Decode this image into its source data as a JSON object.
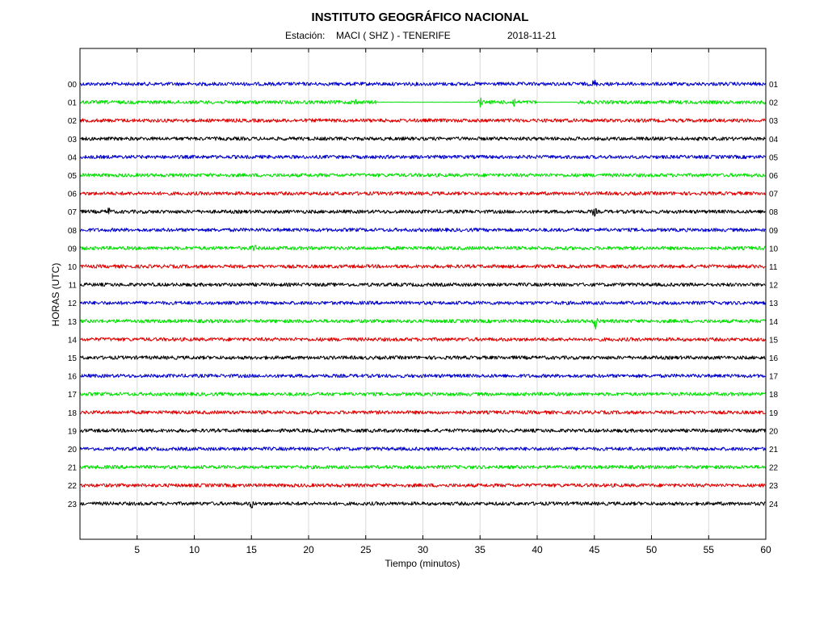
{
  "header": {
    "title": "INSTITUTO GEOGRÁFICO NACIONAL",
    "station_label": "Estación:",
    "station": "MACI ( SHZ ) - TENERIFE",
    "date": "2018-11-21"
  },
  "chart_data": {
    "type": "line",
    "xlabel": "Tiempo (minutos)",
    "ylabel": "HORAS (UTC)",
    "xlim": [
      0,
      60
    ],
    "x_ticks": [
      5,
      10,
      15,
      20,
      25,
      30,
      35,
      40,
      45,
      50,
      55,
      60
    ],
    "grid": "vertical",
    "hour_labels_left": [
      "00",
      "01",
      "02",
      "03",
      "04",
      "05",
      "06",
      "07",
      "08",
      "09",
      "10",
      "11",
      "12",
      "13",
      "14",
      "15",
      "16",
      "17",
      "18",
      "19",
      "20",
      "21",
      "22",
      "23"
    ],
    "hour_labels_right": [
      "01",
      "02",
      "03",
      "04",
      "05",
      "06",
      "07",
      "08",
      "09",
      "10",
      "11",
      "12",
      "13",
      "14",
      "15",
      "16",
      "17",
      "18",
      "19",
      "20",
      "21",
      "22",
      "23",
      "24"
    ],
    "trace_colors": [
      "#0000cc",
      "#00e000",
      "#e00000",
      "#000000"
    ],
    "series": [
      {
        "hour": "00",
        "color": "#0000cc",
        "amplitude": "medium",
        "events": [
          {
            "minute": 45,
            "strength": "small"
          }
        ]
      },
      {
        "hour": "01",
        "color": "#00e000",
        "amplitude": "medium",
        "events": [
          {
            "minute": 24,
            "strength": "small"
          },
          {
            "minute": 35,
            "strength": "small"
          },
          {
            "minute": 38,
            "strength": "small"
          }
        ],
        "quiet_segments": [
          [
            26,
            35
          ],
          [
            40,
            43.5
          ]
        ]
      },
      {
        "hour": "02",
        "color": "#e00000",
        "amplitude": "medium",
        "events": []
      },
      {
        "hour": "03",
        "color": "#000000",
        "amplitude": "medium",
        "events": []
      },
      {
        "hour": "04",
        "color": "#0000cc",
        "amplitude": "medium",
        "events": []
      },
      {
        "hour": "05",
        "color": "#00e000",
        "amplitude": "medium",
        "events": []
      },
      {
        "hour": "06",
        "color": "#e00000",
        "amplitude": "medium",
        "events": []
      },
      {
        "hour": "07",
        "color": "#000000",
        "amplitude": "medium",
        "events": [
          {
            "minute": 2.5,
            "strength": "small"
          },
          {
            "minute": 45,
            "strength": "small"
          }
        ]
      },
      {
        "hour": "08",
        "color": "#0000cc",
        "amplitude": "medium",
        "events": []
      },
      {
        "hour": "09",
        "color": "#00e000",
        "amplitude": "medium",
        "events": [
          {
            "minute": 15.2,
            "strength": "small"
          }
        ]
      },
      {
        "hour": "10",
        "color": "#e00000",
        "amplitude": "medium",
        "events": []
      },
      {
        "hour": "11",
        "color": "#000000",
        "amplitude": "medium",
        "events": []
      },
      {
        "hour": "12",
        "color": "#0000cc",
        "amplitude": "medium",
        "events": []
      },
      {
        "hour": "13",
        "color": "#00e000",
        "amplitude": "medium",
        "events": [
          {
            "minute": 45.1,
            "strength": "large"
          }
        ]
      },
      {
        "hour": "14",
        "color": "#e00000",
        "amplitude": "medium",
        "events": []
      },
      {
        "hour": "15",
        "color": "#000000",
        "amplitude": "medium",
        "events": []
      },
      {
        "hour": "16",
        "color": "#0000cc",
        "amplitude": "medium",
        "events": []
      },
      {
        "hour": "17",
        "color": "#00e000",
        "amplitude": "medium",
        "events": []
      },
      {
        "hour": "18",
        "color": "#e00000",
        "amplitude": "medium",
        "events": []
      },
      {
        "hour": "19",
        "color": "#000000",
        "amplitude": "medium",
        "events": []
      },
      {
        "hour": "20",
        "color": "#0000cc",
        "amplitude": "medium",
        "events": []
      },
      {
        "hour": "21",
        "color": "#00e000",
        "amplitude": "medium",
        "events": []
      },
      {
        "hour": "22",
        "color": "#e00000",
        "amplitude": "medium",
        "events": []
      },
      {
        "hour": "23",
        "color": "#000000",
        "amplitude": "medium",
        "events": [
          {
            "minute": 15,
            "strength": "small"
          }
        ]
      }
    ]
  }
}
